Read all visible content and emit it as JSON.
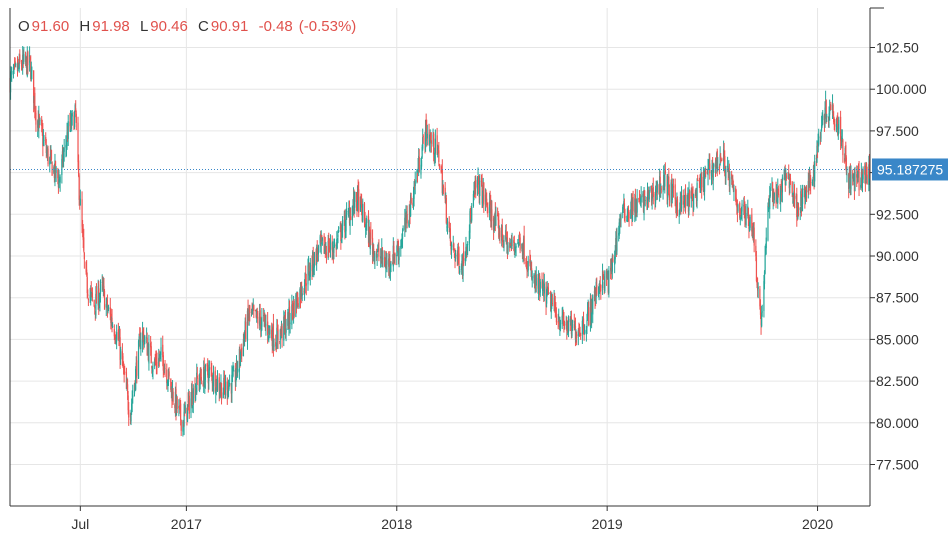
{
  "ohlc_legend": {
    "open_key": "O",
    "open": "91.60",
    "high_key": "H",
    "high": "91.98",
    "low_key": "L",
    "low": "90.46",
    "close_key": "C",
    "close": "90.91",
    "change": "-0.48",
    "change_pct": "(-0.53%)"
  },
  "colors": {
    "up": "#26a69a",
    "down": "#ef5350",
    "grid": "#e6e6e6",
    "axis": "#333333",
    "price_tag": "#3a87c8",
    "price_line": "#3a87c8"
  },
  "current_price_label": "95.187275",
  "chart_data": {
    "type": "candlestick",
    "title": "",
    "xlabel": "",
    "ylabel": "",
    "ylim": [
      75.0,
      105.0
    ],
    "y_ticks": [
      77.5,
      80.0,
      82.5,
      85.0,
      87.5,
      90.0,
      92.5,
      95.0,
      97.5,
      100.0,
      102.5
    ],
    "y_tick_labels": [
      "77.500",
      "80.000",
      "82.500",
      "85.000",
      "87.500",
      "90.000",
      "92.500",
      "95.000",
      "97.500",
      "100.000",
      "102.50"
    ],
    "x_range": [
      "2016-03-01",
      "2020-04-01"
    ],
    "x_ticks": [
      "2016-07-01",
      "2017-01-01",
      "2018-01-01",
      "2019-01-01",
      "2020-01-01"
    ],
    "x_tick_labels": [
      "Jul",
      "2017",
      "2018",
      "2019",
      "2020"
    ],
    "grid": true,
    "current_price": 95.187275,
    "series": [
      {
        "trend_dates": [
          "2016-03-01",
          "2016-03-20",
          "2016-04-05",
          "2016-04-15",
          "2016-05-05",
          "2016-05-25",
          "2016-06-10",
          "2016-06-23",
          "2016-06-27",
          "2016-07-10",
          "2016-07-25",
          "2016-08-08",
          "2016-08-15",
          "2016-09-05",
          "2016-09-25",
          "2016-10-15",
          "2016-11-05",
          "2016-11-20",
          "2016-12-10",
          "2016-12-25",
          "2017-01-20",
          "2017-02-10",
          "2017-03-05",
          "2017-03-25",
          "2017-04-20",
          "2017-05-15",
          "2017-06-05",
          "2017-06-25",
          "2017-07-25",
          "2017-08-20",
          "2017-09-15",
          "2017-10-10",
          "2017-10-25",
          "2017-11-20",
          "2017-12-15",
          "2018-01-05",
          "2018-01-25",
          "2018-02-20",
          "2018-03-15",
          "2018-04-05",
          "2018-04-25",
          "2018-05-20",
          "2018-06-20",
          "2018-07-15",
          "2018-08-05",
          "2018-08-25",
          "2018-09-20",
          "2018-10-15",
          "2018-11-05",
          "2018-11-25",
          "2018-12-20",
          "2019-01-05",
          "2019-01-25",
          "2019-02-20",
          "2019-03-15",
          "2019-04-10",
          "2019-05-05",
          "2019-06-01",
          "2019-06-25",
          "2019-07-20",
          "2019-08-15",
          "2019-09-10",
          "2019-09-25",
          "2019-10-10",
          "2019-10-25",
          "2019-11-10",
          "2019-11-25",
          "2019-12-10",
          "2019-12-25",
          "2020-01-10",
          "2020-01-25",
          "2020-02-10",
          "2020-02-25",
          "2020-03-10",
          "2020-03-31"
        ],
        "trend_closes": [
          100.5,
          101.5,
          101.5,
          98.5,
          96.0,
          94.5,
          97.5,
          98.5,
          95.0,
          88.5,
          87.0,
          88.0,
          87.0,
          85.0,
          80.5,
          85.5,
          83.5,
          84.0,
          81.5,
          80.0,
          82.5,
          83.0,
          82.0,
          82.5,
          86.5,
          86.0,
          85.0,
          86.0,
          88.5,
          90.5,
          90.5,
          92.5,
          93.5,
          90.5,
          89.5,
          90.5,
          93.0,
          97.5,
          96.0,
          90.5,
          89.5,
          94.5,
          92.0,
          90.5,
          91.0,
          88.5,
          87.5,
          86.0,
          85.5,
          86.0,
          88.5,
          88.5,
          92.5,
          93.0,
          93.5,
          94.5,
          93.0,
          93.5,
          95.0,
          96.0,
          93.0,
          92.0,
          86.0,
          94.0,
          93.5,
          95.0,
          93.0,
          93.5,
          95.0,
          98.5,
          99.0,
          97.5,
          94.5,
          94.5,
          95.0
        ]
      }
    ]
  }
}
